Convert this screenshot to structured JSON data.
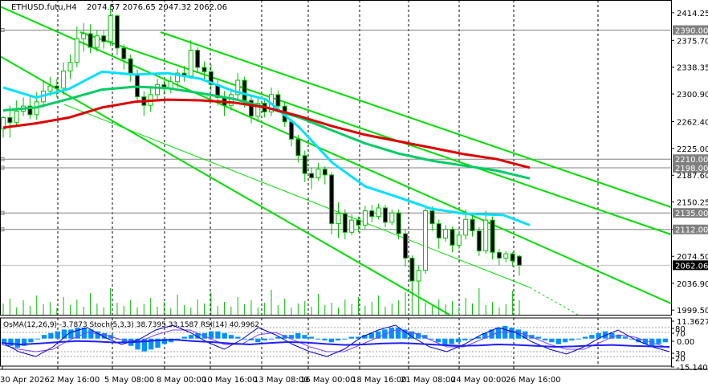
{
  "header": {
    "symbol": "ETHUSD.futu,H4",
    "ohlc": "2074.57 2076.65 2047.32 2062.06"
  },
  "indicator_header": "OsMA(12,26,9) -3.7873  Stoch(5,3,3) 38.7395 33.1587  RSI(14) 40.9962",
  "colors": {
    "background": "#ffffff",
    "candle": "#00c000",
    "channel": "#00dd00",
    "ma_fast": "#00e0ff",
    "ma_mid": "#00cc66",
    "ma_slow": "#dd0000",
    "level": "#808080",
    "osma": "#0090ff",
    "stoch_main": "#0000c0",
    "stoch_signal": "#8040ff",
    "rsi": "#2020ff"
  },
  "chart_data": {
    "type": "candlestick",
    "x_ticks": [
      "30 Apr 2026",
      "2 May 16:00",
      "5 May 08:00",
      "8 May 00:00",
      "10 May 16:00",
      "13 May 08:00",
      "16 May 00:00",
      "18 May 16:00",
      "21 May 08:00",
      "24 May 00:00",
      "26 May 16:00"
    ],
    "y_ticks": [
      "2414.25",
      "2375.70",
      "2338.35",
      "2300.90",
      "2262.40",
      "2225.00",
      "2187.60",
      "2150.25",
      "2112.00",
      "2074.50",
      "2036.90",
      "1999.50"
    ],
    "ylim": [
      1993,
      2432
    ],
    "price_labels": [
      {
        "text": "2390.00",
        "value": 2390.0,
        "color": "#808080"
      },
      {
        "text": "2210.00",
        "value": 2210.0,
        "color": "#808080"
      },
      {
        "text": "2198.00",
        "value": 2198.0,
        "color": "#808080"
      },
      {
        "text": "2135.00",
        "value": 2135.0,
        "color": "#808080"
      },
      {
        "text": "2112.00",
        "value": 2112.0,
        "color": "#808080"
      },
      {
        "text": "2062.06",
        "value": 2062.06,
        "color": "#000000"
      }
    ],
    "horizontal_levels": [
      2390.0,
      2210.0,
      2198.0,
      2135.0,
      2112.0
    ],
    "current_price": 2062.06,
    "channel_lines": [
      {
        "from": [
          0,
          2440
        ],
        "to": [
          196,
          2077
        ]
      },
      {
        "from": [
          0,
          2370
        ],
        "to": [
          140,
          1998
        ]
      },
      {
        "from": [
          50,
          2440
        ],
        "to": [
          244,
          2063
        ]
      },
      {
        "from": [
          155,
          2440
        ],
        "to": [
          260,
          2185
        ]
      }
    ],
    "ma_series": [
      {
        "key": "ma_fast",
        "points": [
          [
            0,
            2310
          ],
          [
            10,
            2296
          ],
          [
            20,
            2308
          ],
          [
            30,
            2332
          ],
          [
            40,
            2328
          ],
          [
            50,
            2330
          ],
          [
            60,
            2322
          ],
          [
            70,
            2305
          ],
          [
            80,
            2293
          ],
          [
            90,
            2254
          ],
          [
            100,
            2205
          ],
          [
            110,
            2172
          ],
          [
            120,
            2157
          ],
          [
            130,
            2141
          ],
          [
            140,
            2134
          ],
          [
            152,
            2132
          ],
          [
            160,
            2118
          ]
        ]
      },
      {
        "key": "ma_mid",
        "points": [
          [
            0,
            2278
          ],
          [
            10,
            2282
          ],
          [
            20,
            2294
          ],
          [
            30,
            2307
          ],
          [
            40,
            2311
          ],
          [
            50,
            2309
          ],
          [
            60,
            2302
          ],
          [
            70,
            2294
          ],
          [
            80,
            2282
          ],
          [
            90,
            2268
          ],
          [
            100,
            2250
          ],
          [
            110,
            2232
          ],
          [
            120,
            2218
          ],
          [
            130,
            2208
          ],
          [
            140,
            2201
          ],
          [
            150,
            2194
          ],
          [
            160,
            2183
          ]
        ]
      },
      {
        "key": "ma_slow",
        "points": [
          [
            0,
            2254
          ],
          [
            10,
            2260
          ],
          [
            20,
            2268
          ],
          [
            30,
            2282
          ],
          [
            40,
            2290
          ],
          [
            50,
            2293
          ],
          [
            60,
            2292
          ],
          [
            70,
            2289
          ],
          [
            80,
            2282
          ],
          [
            90,
            2270
          ],
          [
            100,
            2256
          ],
          [
            110,
            2244
          ],
          [
            120,
            2235
          ],
          [
            130,
            2226
          ],
          [
            140,
            2217
          ],
          [
            150,
            2210
          ],
          [
            160,
            2198
          ]
        ]
      }
    ],
    "candles": [
      [
        2252,
        2268,
        2240,
        2270
      ],
      [
        2268,
        2261,
        2240,
        2285
      ],
      [
        2261,
        2277,
        2255,
        2292
      ],
      [
        2277,
        2284,
        2270,
        2296
      ],
      [
        2284,
        2272,
        2266,
        2299
      ],
      [
        2272,
        2290,
        2265,
        2304
      ],
      [
        2290,
        2305,
        2282,
        2320
      ],
      [
        2305,
        2312,
        2298,
        2325
      ],
      [
        2312,
        2309,
        2296,
        2322
      ],
      [
        2309,
        2333,
        2300,
        2345
      ],
      [
        2333,
        2345,
        2322,
        2356
      ],
      [
        2345,
        2378,
        2338,
        2395
      ],
      [
        2378,
        2385,
        2360,
        2400
      ],
      [
        2385,
        2366,
        2358,
        2398
      ],
      [
        2366,
        2382,
        2360,
        2390
      ],
      [
        2382,
        2374,
        2364,
        2389
      ],
      [
        2374,
        2410,
        2368,
        2425
      ],
      [
        2410,
        2365,
        2355,
        2412
      ],
      [
        2365,
        2350,
        2335,
        2370
      ],
      [
        2350,
        2328,
        2318,
        2356
      ],
      [
        2328,
        2297,
        2288,
        2335
      ],
      [
        2297,
        2285,
        2270,
        2305
      ],
      [
        2285,
        2300,
        2276,
        2310
      ],
      [
        2300,
        2314,
        2292,
        2322
      ],
      [
        2314,
        2308,
        2300,
        2320
      ],
      [
        2308,
        2318,
        2302,
        2326
      ],
      [
        2318,
        2330,
        2310,
        2336
      ],
      [
        2330,
        2326,
        2318,
        2340
      ],
      [
        2326,
        2362,
        2322,
        2376
      ],
      [
        2362,
        2338,
        2330,
        2366
      ],
      [
        2338,
        2332,
        2320,
        2346
      ],
      [
        2332,
        2314,
        2305,
        2342
      ],
      [
        2314,
        2296,
        2285,
        2320
      ],
      [
        2296,
        2285,
        2270,
        2305
      ],
      [
        2285,
        2300,
        2278,
        2308
      ],
      [
        2300,
        2320,
        2292,
        2330
      ],
      [
        2320,
        2292,
        2282,
        2325
      ],
      [
        2292,
        2270,
        2260,
        2298
      ],
      [
        2270,
        2288,
        2262,
        2296
      ],
      [
        2288,
        2276,
        2268,
        2294
      ],
      [
        2276,
        2300,
        2270,
        2310
      ],
      [
        2300,
        2284,
        2276,
        2306
      ],
      [
        2284,
        2262,
        2255,
        2290
      ],
      [
        2262,
        2238,
        2228,
        2266
      ],
      [
        2238,
        2215,
        2205,
        2244
      ],
      [
        2215,
        2190,
        2178,
        2222
      ],
      [
        2190,
        2184,
        2168,
        2198
      ],
      [
        2184,
        2196,
        2180,
        2205
      ],
      [
        2196,
        2188,
        2175,
        2200
      ],
      [
        2188,
        2120,
        2105,
        2192
      ],
      [
        2120,
        2134,
        2100,
        2150
      ],
      [
        2134,
        2108,
        2098,
        2140
      ],
      [
        2108,
        2125,
        2104,
        2133
      ],
      [
        2125,
        2118,
        2108,
        2130
      ],
      [
        2118,
        2138,
        2112,
        2145
      ],
      [
        2138,
        2130,
        2122,
        2146
      ],
      [
        2130,
        2142,
        2126,
        2148
      ],
      [
        2142,
        2122,
        2115,
        2146
      ],
      [
        2122,
        2135,
        2118,
        2140
      ],
      [
        2135,
        2106,
        2098,
        2140
      ],
      [
        2106,
        2072,
        2060,
        2112
      ],
      [
        2072,
        2040,
        2022,
        2076
      ],
      [
        2040,
        2055,
        2020,
        2062
      ],
      [
        2055,
        2138,
        2050,
        2142
      ],
      [
        2138,
        2120,
        2110,
        2144
      ],
      [
        2120,
        2100,
        2085,
        2126
      ],
      [
        2100,
        2112,
        2095,
        2118
      ],
      [
        2112,
        2090,
        2080,
        2116
      ],
      [
        2090,
        2104,
        2085,
        2110
      ],
      [
        2104,
        2126,
        2098,
        2140
      ],
      [
        2126,
        2110,
        2102,
        2132
      ],
      [
        2110,
        2082,
        2075,
        2115
      ],
      [
        2082,
        2125,
        2078,
        2138
      ],
      [
        2125,
        2080,
        2070,
        2130
      ],
      [
        2080,
        2072,
        2062,
        2085
      ],
      [
        2072,
        2078,
        2066,
        2082
      ],
      [
        2078,
        2068,
        2060,
        2080
      ],
      [
        2074.57,
        2062.06,
        2047.32,
        2076.65
      ]
    ],
    "volume_bars": [
      14,
      20,
      9,
      18,
      11,
      24,
      13,
      16,
      8,
      22,
      12,
      19,
      10,
      27,
      14,
      9,
      33,
      15,
      11,
      18,
      9,
      13,
      21,
      10,
      16,
      8,
      25,
      12,
      9,
      19,
      14,
      28,
      11,
      16,
      10,
      22,
      13,
      18,
      9,
      15,
      31,
      12,
      20,
      9,
      14,
      17,
      10,
      26,
      12,
      15,
      9,
      19,
      13,
      22,
      11,
      16,
      24,
      10,
      14,
      18,
      28,
      40,
      22,
      15,
      11,
      19,
      13,
      17,
      10,
      21,
      14,
      33,
      12,
      16,
      9,
      13,
      30,
      18
    ],
    "sub": {
      "ylim": [
        -15.1405,
        11.3627
      ],
      "ticks": [
        "11.3627",
        "80",
        "70",
        "0.00",
        "30",
        "20",
        "-15.1405"
      ],
      "osma_bars": [
        -3,
        -4,
        -5,
        -4,
        -2,
        0,
        2,
        3,
        4,
        5,
        5,
        6,
        6,
        5,
        4,
        3,
        2,
        0,
        -2,
        -4,
        -6,
        -7,
        -6,
        -5,
        -3,
        -2,
        0,
        1,
        2,
        3,
        3,
        4,
        4,
        3,
        2,
        1,
        0,
        -1,
        -2,
        -1,
        0,
        1,
        2,
        2,
        3,
        2,
        1,
        0,
        -1,
        -2,
        -1,
        0,
        1,
        1,
        2,
        3,
        4,
        5,
        6,
        6,
        5,
        4,
        3,
        2,
        0,
        -2,
        -4,
        -3,
        -2,
        -1,
        0,
        1,
        3,
        5,
        6,
        7,
        6,
        5,
        4,
        2,
        1,
        -1,
        -2,
        -3,
        -2,
        -1,
        0,
        1,
        2,
        3,
        4,
        3,
        2,
        1,
        0,
        -2,
        -3,
        -4,
        -3,
        -2
      ],
      "stoch_main": [
        50,
        30,
        20,
        40,
        70,
        80,
        60,
        45,
        55,
        75,
        85,
        70,
        50,
        35,
        55,
        80,
        65,
        45,
        30,
        20,
        35,
        60,
        75,
        85,
        60,
        40,
        30,
        45,
        65,
        80,
        70,
        50,
        35,
        25,
        40,
        60,
        75,
        55,
        40,
        30
      ],
      "stoch_signal": [
        45,
        35,
        30,
        35,
        55,
        70,
        65,
        55,
        50,
        65,
        75,
        75,
        60,
        45,
        45,
        65,
        70,
        55,
        40,
        30,
        30,
        45,
        60,
        75,
        70,
        55,
        40,
        40,
        55,
        70,
        72,
        60,
        45,
        35,
        35,
        50,
        65,
        60,
        48,
        38
      ],
      "rsi": [
        48,
        45,
        47,
        50,
        52,
        51,
        49,
        50,
        53,
        55,
        52,
        50,
        47,
        45,
        48,
        50,
        49,
        46,
        44,
        45,
        47,
        48,
        46,
        44,
        42,
        43,
        45,
        44,
        42,
        40,
        41,
        43,
        44,
        42,
        41,
        40
      ]
    }
  }
}
